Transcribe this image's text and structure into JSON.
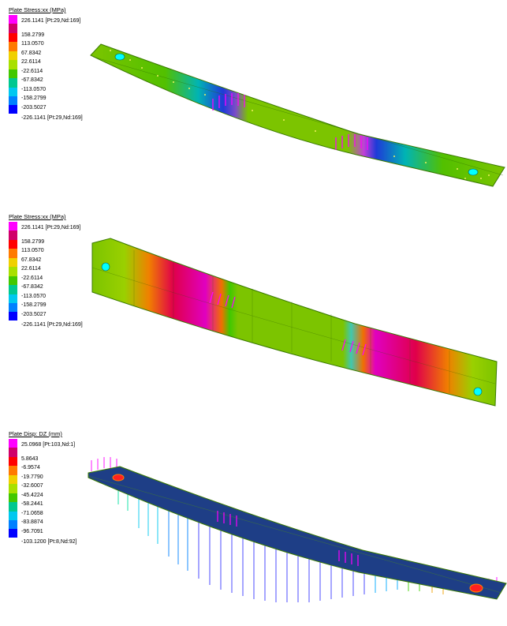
{
  "panels": [
    {
      "id": "panel-1",
      "title": "Plate Stress:xx (MPa)",
      "max_label": "226.1141 [Pt:29,Nd:169]",
      "min_label": "-226.1141 [Pt:29,Nd:169]",
      "ticks": [
        "158.2799",
        "113.0570",
        "67.8342",
        "22.6114",
        "-22.6114",
        "-67.8342",
        "-113.0570",
        "-158.2799",
        "-203.5027"
      ],
      "colors": [
        "#ff00ff",
        "#d0006a",
        "#ff0000",
        "#ff7a00",
        "#f0d000",
        "#a8e000",
        "#42c800",
        "#00c890",
        "#00c8f0",
        "#0080ff",
        "#0000ff"
      ]
    },
    {
      "id": "panel-2",
      "title": "Plate Stress:xx (MPa)",
      "max_label": "226.1141 [Pt:29,Nd:169]",
      "min_label": "-226.1141 [Pt:29,Nd:169]",
      "ticks": [
        "158.2799",
        "113.0570",
        "67.8342",
        "22.6114",
        "-22.6114",
        "-67.8342",
        "-113.0570",
        "-158.2799",
        "-203.5027"
      ],
      "colors": [
        "#ff00ff",
        "#d0006a",
        "#ff0000",
        "#ff7a00",
        "#f0d000",
        "#a8e000",
        "#42c800",
        "#00c890",
        "#00c8f0",
        "#0080ff",
        "#0000ff"
      ]
    },
    {
      "id": "panel-3",
      "title": "Plate Disp: DZ (mm)",
      "max_label": "25.0968 [Pt:103,Nd:1]",
      "min_label": "-103.1200 [Pt:8,Nd:92]",
      "ticks": [
        "5.8643",
        "-6.9574",
        "-19.7790",
        "-32.6007",
        "-45.4224",
        "-58.2441",
        "-71.0658",
        "-83.8874",
        "-96.7091"
      ],
      "colors": [
        "#ff00ff",
        "#d0006a",
        "#ff0000",
        "#ff7a00",
        "#f0d000",
        "#a8e000",
        "#42c800",
        "#00c890",
        "#00c8f0",
        "#0080ff",
        "#0000ff"
      ]
    }
  ],
  "colors": {
    "plate_green": "#7cc400",
    "plate_dark_blue": "#1e3e86",
    "load_magenta": "#ff00ff",
    "support_cyan": "#00ffff",
    "node_yellow": "#f0f060"
  }
}
